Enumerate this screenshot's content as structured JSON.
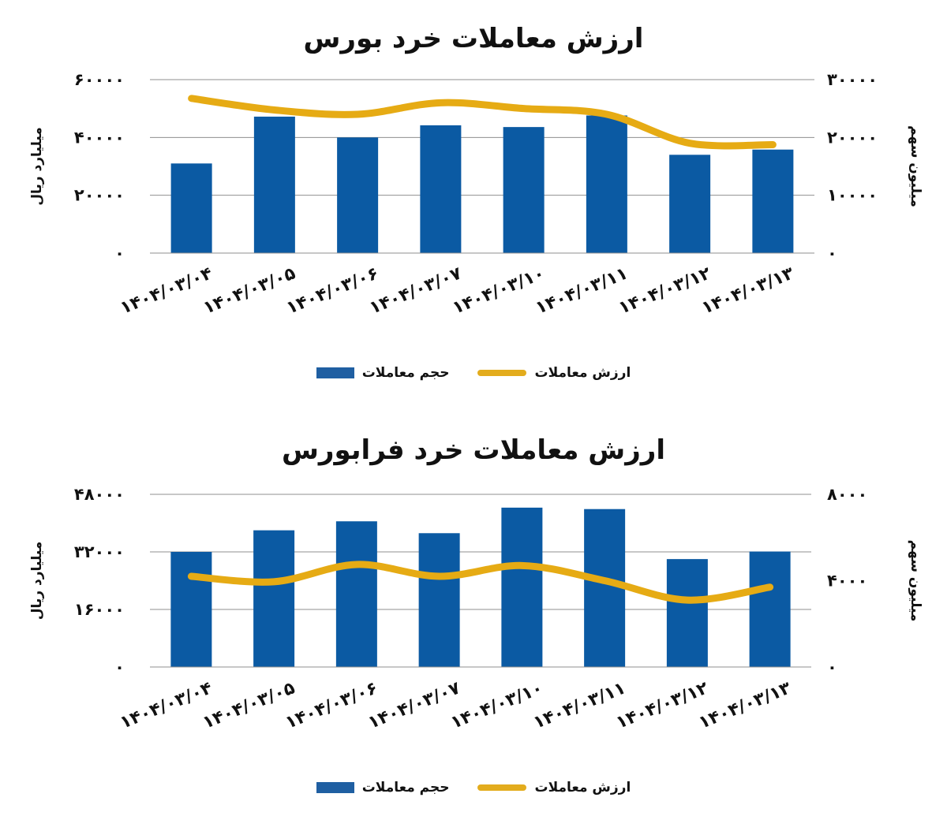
{
  "colors": {
    "bar": "#0b5aa3",
    "line": "#e6ab14",
    "grid": "#8f8f8f"
  },
  "chart_data": [
    {
      "type": "bar",
      "title": "ارزش معاملات خرد بورس",
      "categories": [
        "۱۴۰۴/۰۳/۰۴",
        "۱۴۰۴/۰۳/۰۵",
        "۱۴۰۴/۰۳/۰۶",
        "۱۴۰۴/۰۳/۰۷",
        "۱۴۰۴/۰۳/۱۰",
        "۱۴۰۴/۰۳/۱۱",
        "۱۴۰۴/۰۳/۱۲",
        "۱۴۰۴/۰۳/۱۳"
      ],
      "ylabel_left": "میلیارد ریال",
      "ylabel_right": "میلیون سهم",
      "yticks_left": [
        "۰",
        "۲۰۰۰۰",
        "۴۰۰۰۰",
        "۶۰۰۰۰"
      ],
      "yticks_right": [
        "۰",
        "۱۰۰۰۰",
        "۲۰۰۰۰",
        "۳۰۰۰۰"
      ],
      "ylim_left": [
        0,
        60000
      ],
      "ylim_right": [
        0,
        30000
      ],
      "series": [
        {
          "name": "حجم معاملات",
          "type": "bar",
          "axis": "right",
          "values": [
            15500,
            23600,
            20000,
            22100,
            21800,
            23800,
            17000,
            17900
          ]
        },
        {
          "name": "ارزش معاملات",
          "type": "line",
          "axis": "left",
          "values": [
            53500,
            49500,
            48000,
            52000,
            50000,
            48000,
            38000,
            37500
          ]
        }
      ],
      "grid": true,
      "legend_position": "bottom"
    },
    {
      "type": "bar",
      "title": "ارزش معاملات خرد فرابورس",
      "categories": [
        "۱۴۰۴/۰۳/۰۴",
        "۱۴۰۴/۰۳/۰۵",
        "۱۴۰۴/۰۳/۰۶",
        "۱۴۰۴/۰۳/۰۷",
        "۱۴۰۴/۰۳/۱۰",
        "۱۴۰۴/۰۳/۱۱",
        "۱۴۰۴/۰۳/۱۲",
        "۱۴۰۴/۰۳/۱۳"
      ],
      "ylabel_left": "میلیارد ریال",
      "ylabel_right": "میلیون سهم",
      "yticks_left": [
        "۰",
        "۱۶۰۰۰",
        "۳۲۰۰۰",
        "۴۸۰۰۰"
      ],
      "yticks_right": [
        "۰",
        "۴۰۰۰",
        "۸۰۰۰"
      ],
      "ylim_left": [
        0,
        48000
      ],
      "ylim_right": [
        0,
        8000
      ],
      "series": [
        {
          "name": "حجم معاملات",
          "type": "bar",
          "axis": "left",
          "values": [
            32000,
            38000,
            40500,
            37200,
            44300,
            43900,
            30000,
            32100
          ]
        },
        {
          "name": "ارزش معاملات",
          "type": "line",
          "axis": "right",
          "values": [
            4200,
            3950,
            4750,
            4200,
            4700,
            4000,
            3100,
            3700
          ]
        }
      ],
      "grid": true,
      "legend_position": "bottom"
    }
  ]
}
